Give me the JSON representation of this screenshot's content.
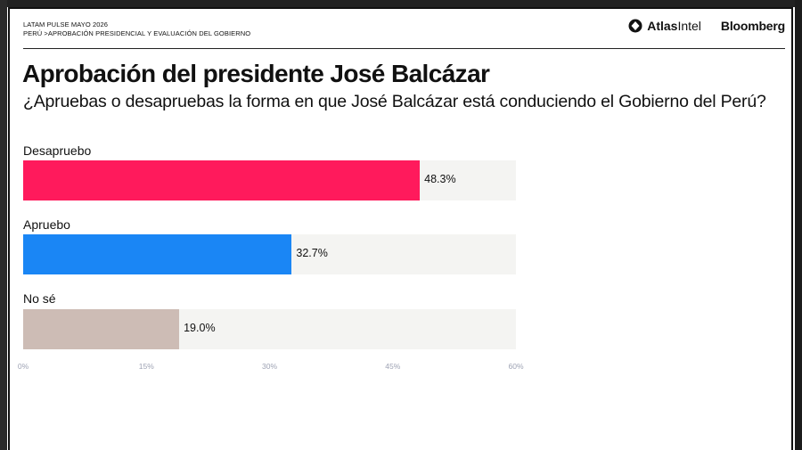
{
  "header": {
    "line1": "LATAM PULSE MAYO 2026",
    "line2": "PERÚ >APROBACIÓN PRESIDENCIAL Y EVALUACIÓN DEL GOBIERNO",
    "brand_atlas_bold": "Atlas",
    "brand_atlas_rest": "Intel",
    "brand_bloomberg": "Bloomberg"
  },
  "chart_data": {
    "type": "bar",
    "orientation": "horizontal",
    "title": "Aprobación del presidente José Balcázar",
    "subtitle": "¿Apruebas o desapruebas la forma en que José Balcázar está conduciendo el Gobierno del Perú?",
    "categories": [
      "Desapruebo",
      "Apruebo",
      "No sé"
    ],
    "values": [
      48.3,
      32.7,
      19.0
    ],
    "value_labels": [
      "48.3%",
      "32.7%",
      "19.0%"
    ],
    "colors": [
      "#ff1a5c",
      "#1a86f5",
      "#cdbcb5"
    ],
    "track_color": "#f4f4f2",
    "xlim": [
      0,
      60
    ],
    "xticks": [
      0,
      15,
      30,
      45,
      60
    ],
    "xtick_labels": [
      "0%",
      "15%",
      "30%",
      "45%",
      "60%"
    ],
    "grid": false,
    "legend": "none"
  }
}
